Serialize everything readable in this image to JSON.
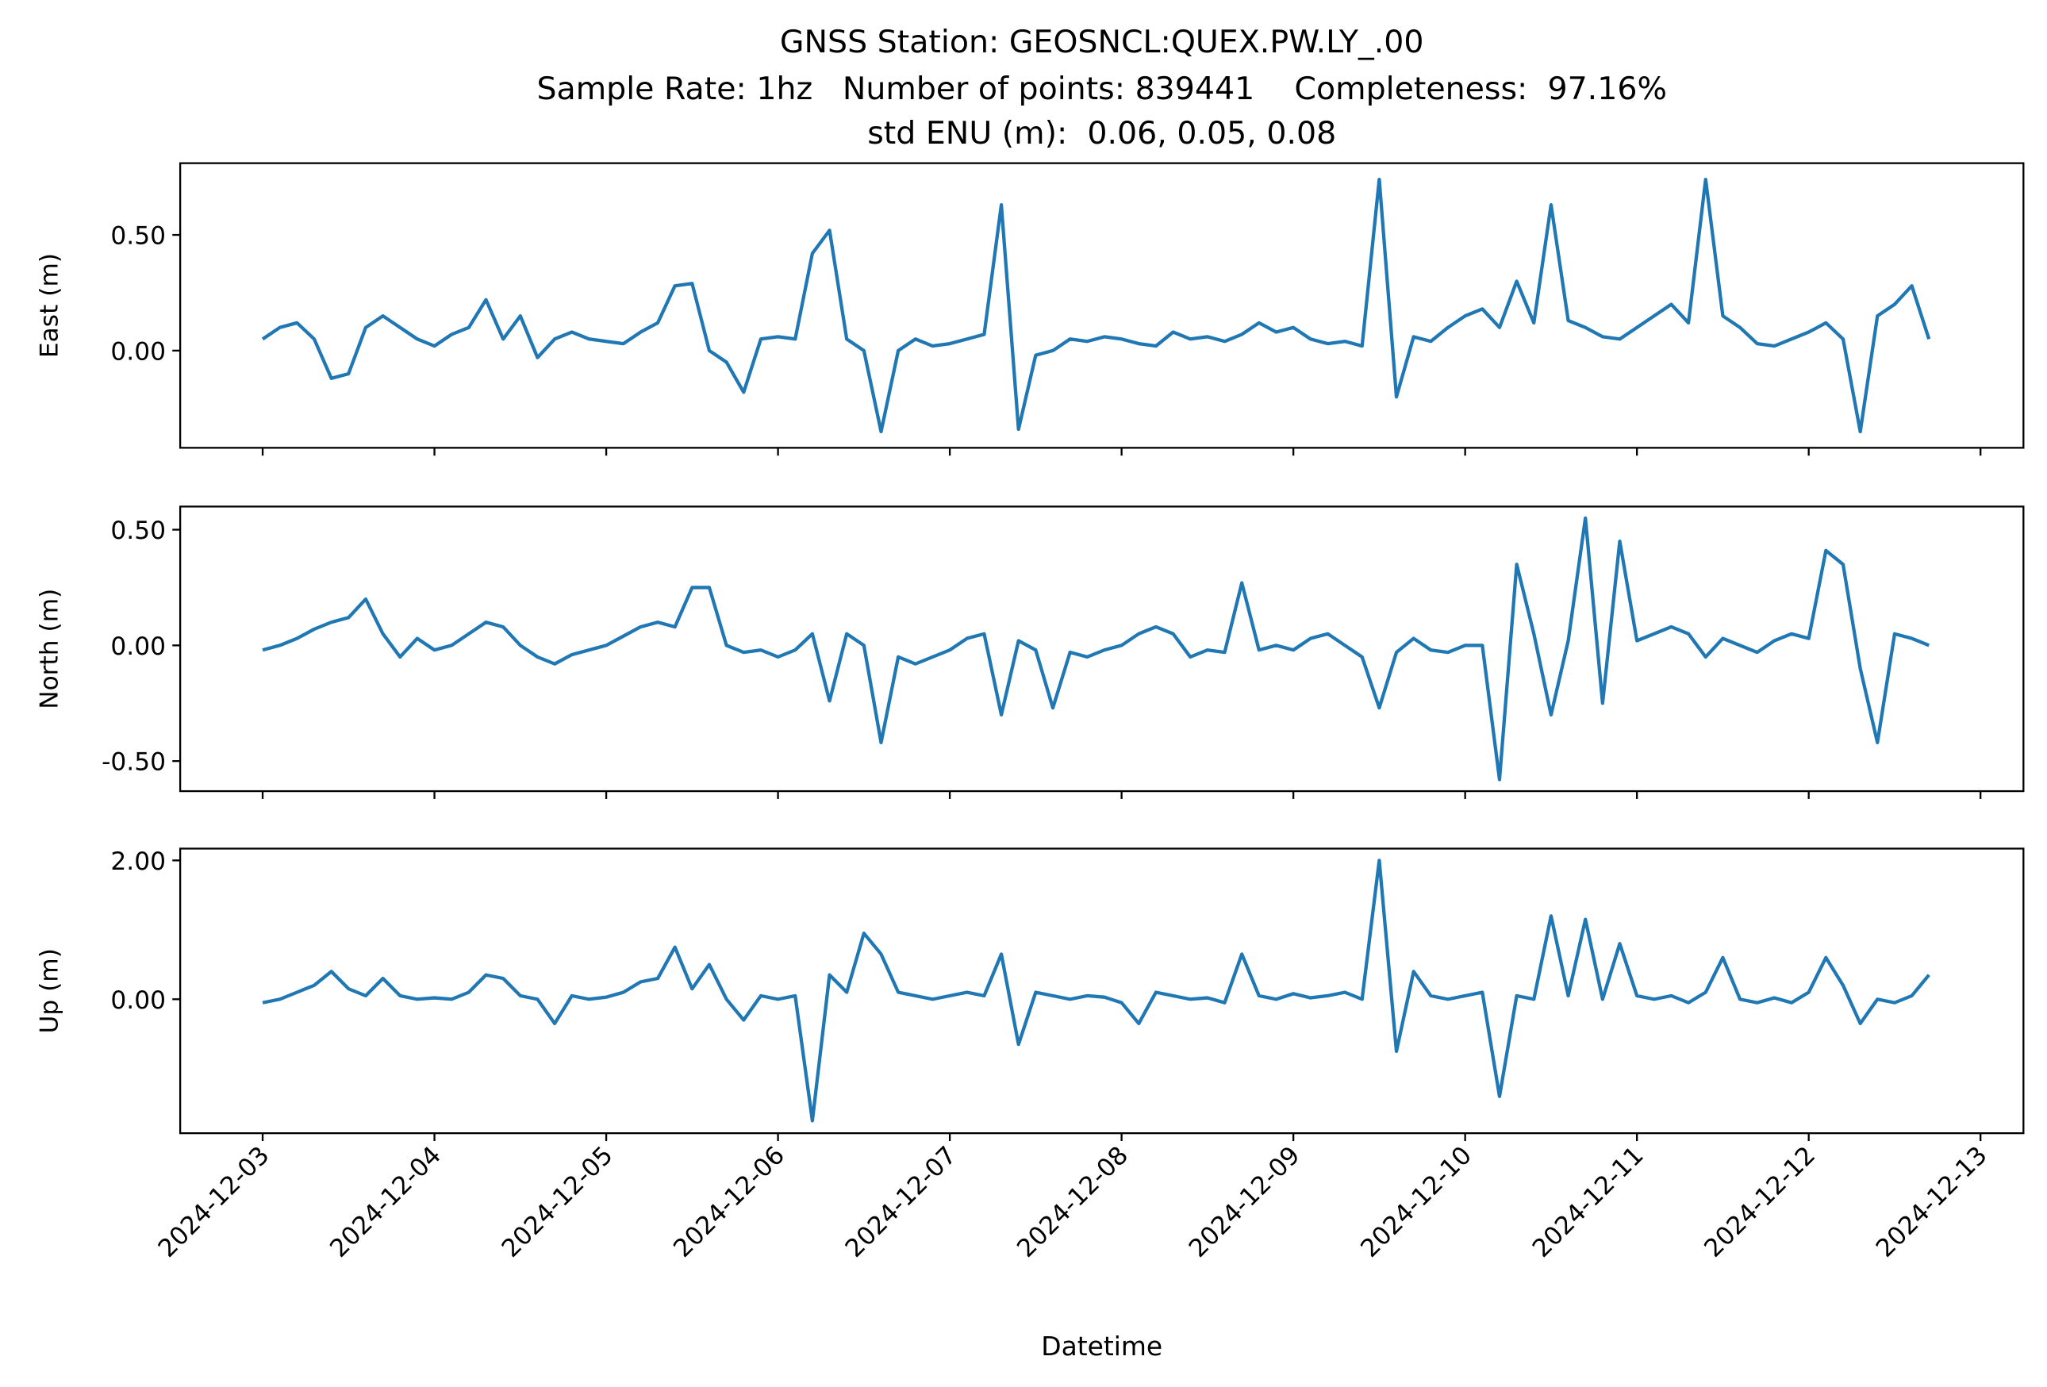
{
  "title": [
    "GNSS Station: GEOSNCL:QUEX.PW.LY_.00",
    "Sample Rate: 1hz   Number of points: 839441    Completeness:  97.16%",
    "std ENU (m):  0.06, 0.05, 0.08"
  ],
  "chart_data": [
    {
      "type": "line",
      "ylabel": "East (m)",
      "color": "#1f77b4",
      "xlim": [
        -0.48,
        10.25
      ],
      "xticks": [
        0,
        1,
        2,
        3,
        4,
        5,
        6,
        7,
        8,
        9,
        10
      ],
      "ylim": [
        -0.42,
        0.81
      ],
      "yticks": [
        {
          "value": 0,
          "label": "0.00"
        },
        {
          "value": 0.5,
          "label": "0.50"
        }
      ],
      "x": [
        0,
        0.1,
        0.2,
        0.3,
        0.4,
        0.5,
        0.6,
        0.7,
        0.8,
        0.9,
        1,
        1.1,
        1.2,
        1.3,
        1.4,
        1.5,
        1.6,
        1.7,
        1.8,
        1.9,
        2,
        2.1,
        2.2,
        2.3,
        2.4,
        2.5,
        2.6,
        2.7,
        2.8,
        2.9,
        3,
        3.1,
        3.2,
        3.3,
        3.4,
        3.5,
        3.6,
        3.7,
        3.8,
        3.9,
        4,
        4.1,
        4.2,
        4.3,
        4.4,
        4.5,
        4.6,
        4.7,
        4.8,
        4.9,
        5,
        5.1,
        5.2,
        5.3,
        5.4,
        5.5,
        5.6,
        5.7,
        5.8,
        5.9,
        6,
        6.1,
        6.2,
        6.3,
        6.4,
        6.5,
        6.6,
        6.7,
        6.8,
        6.9,
        7,
        7.1,
        7.2,
        7.3,
        7.4,
        7.5,
        7.6,
        7.7,
        7.8,
        7.9,
        8,
        8.1,
        8.2,
        8.3,
        8.4,
        8.5,
        8.6,
        8.7,
        8.8,
        8.9,
        9,
        9.1,
        9.2,
        9.3,
        9.4,
        9.5,
        9.6,
        9.7
      ],
      "values": [
        0.05,
        0.1,
        0.12,
        0.05,
        -0.12,
        -0.1,
        0.1,
        0.15,
        0.1,
        0.05,
        0.02,
        0.07,
        0.1,
        0.22,
        0.05,
        0.15,
        -0.03,
        0.05,
        0.08,
        0.05,
        0.04,
        0.03,
        0.08,
        0.12,
        0.28,
        0.29,
        0,
        -0.05,
        -0.18,
        0.05,
        0.06,
        0.05,
        0.42,
        0.52,
        0.05,
        0,
        -0.35,
        0,
        0.05,
        0.02,
        0.03,
        0.05,
        0.07,
        0.63,
        -0.34,
        -0.02,
        0,
        0.05,
        0.04,
        0.06,
        0.05,
        0.03,
        0.02,
        0.08,
        0.05,
        0.06,
        0.04,
        0.07,
        0.12,
        0.08,
        0.1,
        0.05,
        0.03,
        0.04,
        0.02,
        0.74,
        -0.2,
        0.06,
        0.04,
        0.1,
        0.15,
        0.18,
        0.1,
        0.3,
        0.12,
        0.63,
        0.13,
        0.1,
        0.06,
        0.05,
        0.1,
        0.15,
        0.2,
        0.12,
        0.74,
        0.15,
        0.1,
        0.03,
        0.02,
        0.05,
        0.08,
        0.12,
        0.05,
        -0.35,
        0.15,
        0.2,
        0.28,
        0.05
      ]
    },
    {
      "type": "line",
      "ylabel": "North (m)",
      "color": "#1f77b4",
      "xlim": [
        -0.48,
        10.25
      ],
      "xticks": [
        0,
        1,
        2,
        3,
        4,
        5,
        6,
        7,
        8,
        9,
        10
      ],
      "ylim": [
        -0.63,
        0.6
      ],
      "yticks": [
        {
          "value": -0.5,
          "label": "-0.50"
        },
        {
          "value": 0,
          "label": "0.00"
        },
        {
          "value": 0.5,
          "label": "0.50"
        }
      ],
      "x": [
        0,
        0.1,
        0.2,
        0.3,
        0.4,
        0.5,
        0.6,
        0.7,
        0.8,
        0.9,
        1,
        1.1,
        1.2,
        1.3,
        1.4,
        1.5,
        1.6,
        1.7,
        1.8,
        1.9,
        2,
        2.1,
        2.2,
        2.3,
        2.4,
        2.5,
        2.6,
        2.7,
        2.8,
        2.9,
        3,
        3.1,
        3.2,
        3.3,
        3.4,
        3.5,
        3.6,
        3.7,
        3.8,
        3.9,
        4,
        4.1,
        4.2,
        4.3,
        4.4,
        4.5,
        4.6,
        4.7,
        4.8,
        4.9,
        5,
        5.1,
        5.2,
        5.3,
        5.4,
        5.5,
        5.6,
        5.7,
        5.8,
        5.9,
        6,
        6.1,
        6.2,
        6.3,
        6.4,
        6.5,
        6.6,
        6.7,
        6.8,
        6.9,
        7,
        7.1,
        7.2,
        7.3,
        7.4,
        7.5,
        7.6,
        7.7,
        7.8,
        7.9,
        8,
        8.1,
        8.2,
        8.3,
        8.4,
        8.5,
        8.6,
        8.7,
        8.8,
        8.9,
        9,
        9.1,
        9.2,
        9.3,
        9.4,
        9.5,
        9.6,
        9.7
      ],
      "values": [
        -0.02,
        0,
        0.03,
        0.07,
        0.1,
        0.12,
        0.2,
        0.05,
        -0.05,
        0.03,
        -0.02,
        0,
        0.05,
        0.1,
        0.08,
        0,
        -0.05,
        -0.08,
        -0.04,
        -0.02,
        0,
        0.04,
        0.08,
        0.1,
        0.08,
        0.25,
        0.25,
        0,
        -0.03,
        -0.02,
        -0.05,
        -0.02,
        0.05,
        -0.24,
        0.05,
        0,
        -0.42,
        -0.05,
        -0.08,
        -0.05,
        -0.02,
        0.03,
        0.05,
        -0.3,
        0.02,
        -0.02,
        -0.27,
        -0.03,
        -0.05,
        -0.02,
        0,
        0.05,
        0.08,
        0.05,
        -0.05,
        -0.02,
        -0.03,
        0.27,
        -0.02,
        0,
        -0.02,
        0.03,
        0.05,
        0,
        -0.05,
        -0.27,
        -0.03,
        0.03,
        -0.02,
        -0.03,
        0,
        0,
        -0.58,
        0.35,
        0.05,
        -0.3,
        0.02,
        0.55,
        -0.25,
        0.45,
        0.02,
        0.05,
        0.08,
        0.05,
        -0.05,
        0.03,
        0,
        -0.03,
        0.02,
        0.05,
        0.03,
        0.41,
        0.35,
        -0.1,
        -0.42,
        0.05,
        0.03,
        0
      ]
    },
    {
      "type": "line",
      "ylabel": "Up (m)",
      "xlabel": "Datetime",
      "color": "#1f77b4",
      "xlim": [
        -0.48,
        10.25
      ],
      "xticks": [
        {
          "value": 0,
          "label": "2024-12-03"
        },
        {
          "value": 1,
          "label": "2024-12-04"
        },
        {
          "value": 2,
          "label": "2024-12-05"
        },
        {
          "value": 3,
          "label": "2024-12-06"
        },
        {
          "value": 4,
          "label": "2024-12-07"
        },
        {
          "value": 5,
          "label": "2024-12-08"
        },
        {
          "value": 6,
          "label": "2024-12-09"
        },
        {
          "value": 7,
          "label": "2024-12-10"
        },
        {
          "value": 8,
          "label": "2024-12-11"
        },
        {
          "value": 9,
          "label": "2024-12-12"
        },
        {
          "value": 10,
          "label": "2024-12-13"
        }
      ],
      "ylim": [
        -1.93,
        2.17
      ],
      "yticks": [
        {
          "value": 0,
          "label": "0.00"
        },
        {
          "value": 2,
          "label": "2.00"
        }
      ],
      "x": [
        0,
        0.1,
        0.2,
        0.3,
        0.4,
        0.5,
        0.6,
        0.7,
        0.8,
        0.9,
        1,
        1.1,
        1.2,
        1.3,
        1.4,
        1.5,
        1.6,
        1.7,
        1.8,
        1.9,
        2,
        2.1,
        2.2,
        2.3,
        2.4,
        2.5,
        2.6,
        2.7,
        2.8,
        2.9,
        3,
        3.1,
        3.2,
        3.3,
        3.4,
        3.5,
        3.6,
        3.7,
        3.8,
        3.9,
        4,
        4.1,
        4.2,
        4.3,
        4.4,
        4.5,
        4.6,
        4.7,
        4.8,
        4.9,
        5,
        5.1,
        5.2,
        5.3,
        5.4,
        5.5,
        5.6,
        5.7,
        5.8,
        5.9,
        6,
        6.1,
        6.2,
        6.3,
        6.4,
        6.5,
        6.6,
        6.7,
        6.8,
        6.9,
        7,
        7.1,
        7.2,
        7.3,
        7.4,
        7.5,
        7.6,
        7.7,
        7.8,
        7.9,
        8,
        8.1,
        8.2,
        8.3,
        8.4,
        8.5,
        8.6,
        8.7,
        8.8,
        8.9,
        9,
        9.1,
        9.2,
        9.3,
        9.4,
        9.5,
        9.6,
        9.7
      ],
      "values": [
        -0.05,
        0,
        0.1,
        0.2,
        0.4,
        0.15,
        0.05,
        0.3,
        0.05,
        0,
        0.02,
        0,
        0.1,
        0.35,
        0.3,
        0.05,
        0,
        -0.35,
        0.05,
        0,
        0.03,
        0.1,
        0.25,
        0.3,
        0.75,
        0.15,
        0.5,
        0,
        -0.3,
        0.05,
        0,
        0.05,
        -1.75,
        0.35,
        0.1,
        0.95,
        0.65,
        0.1,
        0.05,
        0,
        0.05,
        0.1,
        0.05,
        0.65,
        -0.65,
        0.1,
        0.05,
        0,
        0.05,
        0.03,
        -0.05,
        -0.35,
        0.1,
        0.05,
        0,
        0.02,
        -0.05,
        0.65,
        0.05,
        0,
        0.08,
        0.02,
        0.05,
        0.1,
        0,
        2,
        -0.75,
        0.4,
        0.05,
        0,
        0.05,
        0.1,
        -1.4,
        0.05,
        0,
        1.2,
        0.05,
        1.15,
        0,
        0.8,
        0.05,
        0,
        0.05,
        -0.05,
        0.1,
        0.6,
        0,
        -0.05,
        0.02,
        -0.05,
        0.1,
        0.6,
        0.2,
        -0.35,
        0,
        -0.05,
        0.05,
        0.35
      ]
    }
  ]
}
